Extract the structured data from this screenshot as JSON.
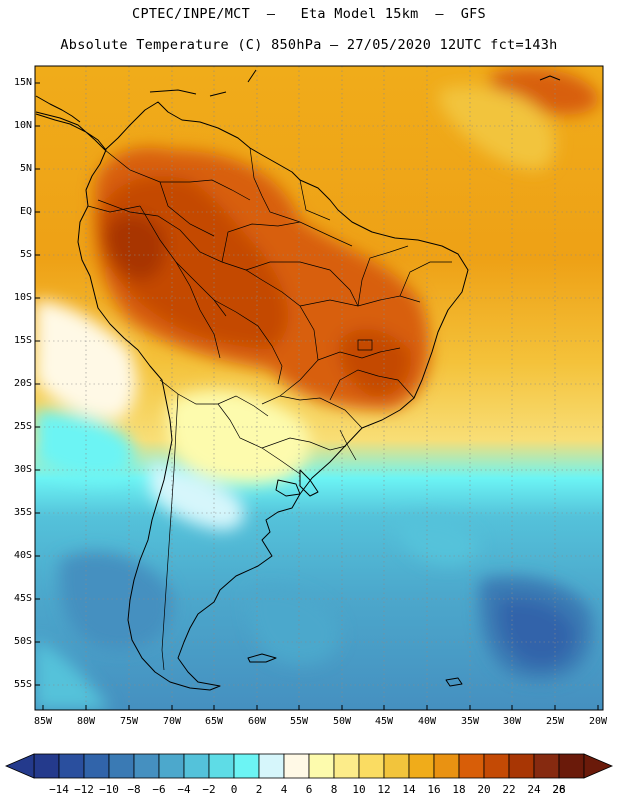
{
  "header": {
    "line1": "CPTEC/INPE/MCT  –   Eta Model 15km  –  GFS",
    "line2": "Absolute Temperature (C) 850hPa – 27/05/2020 12UTC fct=143h"
  },
  "lat_labels": [
    "15N",
    "10N",
    "5N",
    "EQ",
    "5S",
    "10S",
    "15S",
    "20S",
    "25S",
    "30S",
    "35S",
    "40S",
    "45S",
    "50S",
    "55S"
  ],
  "lon_labels": [
    "85W",
    "80W",
    "75W",
    "70W",
    "65W",
    "60W",
    "55W",
    "50W",
    "45W",
    "40W",
    "35W",
    "30W",
    "25W",
    "20W"
  ],
  "legend": {
    "min": "-14",
    "max": "28",
    "labels": [
      "-14",
      "-12",
      "-10",
      "-8",
      "-6",
      "-4",
      "-2",
      "0",
      "2",
      "4",
      "6",
      "8",
      "10",
      "12",
      "14",
      "16",
      "18",
      "20",
      "22",
      "24",
      "26",
      "28"
    ],
    "colors": [
      "#243a8c",
      "#2a4f9e",
      "#3164aa",
      "#3a7ab4",
      "#4590c0",
      "#4ca8cc",
      "#54c2da",
      "#5edce6",
      "#6cf4f4",
      "#d6f6fb",
      "#fff9e6",
      "#fdfbad",
      "#fcec8a",
      "#fadc62",
      "#f2c43c",
      "#f0ac1a",
      "#e99212",
      "#d85e08",
      "#c44a05",
      "#a83604",
      "#862a10",
      "#6a1a0a"
    ]
  },
  "icons": {
    "left_arrow": "triangle-left",
    "right_arrow": "triangle-right"
  }
}
